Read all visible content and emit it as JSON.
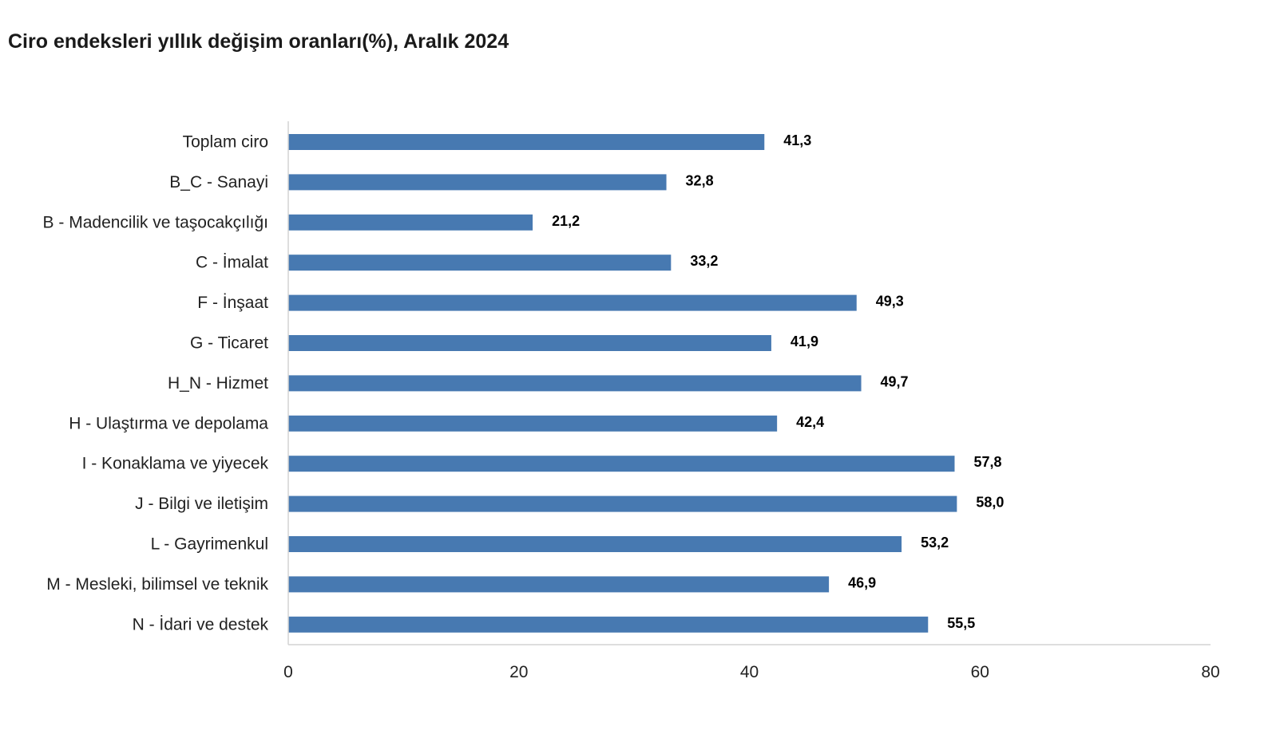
{
  "title": "Ciro endeksleri yıllık değişim oranları(%), Aralık 2024",
  "colors": {
    "bar": "#4779b1",
    "axis": "#d4d4d4"
  },
  "chart_data": {
    "type": "bar",
    "orientation": "horizontal",
    "title": "Ciro endeksleri yıllık değişim oranları(%), Aralık 2024",
    "categories": [
      "Toplam ciro",
      "B_C - Sanayi",
      "B - Madencilik ve taşocakçılığı",
      "C - İmalat",
      "F - İnşaat",
      "G - Ticaret",
      "H_N - Hizmet",
      "H - Ulaştırma ve depolama",
      "I - Konaklama ve yiyecek",
      "J - Bilgi ve iletişim",
      "L - Gayrimenkul",
      "M - Mesleki, bilimsel ve teknik",
      "N - İdari ve destek"
    ],
    "values": [
      41.3,
      32.8,
      21.2,
      33.2,
      49.3,
      41.9,
      49.7,
      42.4,
      57.8,
      58.0,
      53.2,
      46.9,
      55.5
    ],
    "value_labels": [
      "41,3",
      "32,8",
      "21,2",
      "33,2",
      "49,3",
      "41,9",
      "49,7",
      "42,4",
      "57,8",
      "58,0",
      "53,2",
      "46,9",
      "55,5"
    ],
    "xlim": [
      0,
      80
    ],
    "x_ticks": [
      0,
      20,
      40,
      60,
      80
    ],
    "x_tick_labels": [
      "0",
      "20",
      "40",
      "60",
      "80"
    ],
    "grid": false,
    "legend": "none"
  }
}
